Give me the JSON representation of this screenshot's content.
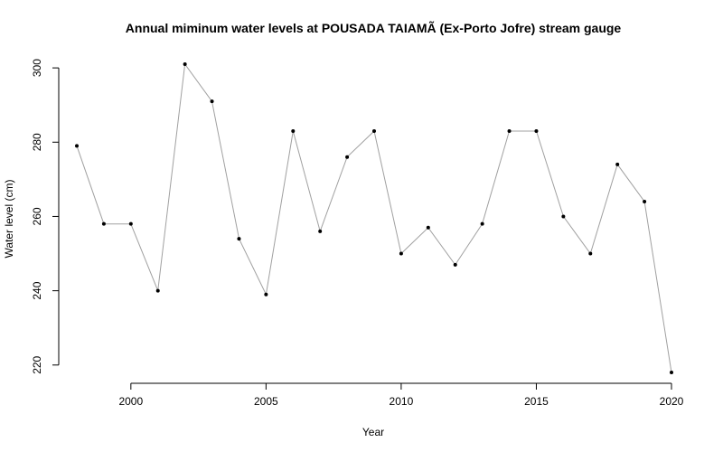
{
  "chart_data": {
    "type": "line",
    "title": "Annual miminum water levels at POUSADA TAIAMÃ  (Ex-Porto Jofre) stream gauge",
    "xlabel": "Year",
    "ylabel": "Water level (cm)",
    "x": [
      1998,
      1999,
      2000,
      2001,
      2002,
      2003,
      2004,
      2005,
      2006,
      2007,
      2008,
      2009,
      2010,
      2011,
      2012,
      2013,
      2014,
      2015,
      2016,
      2017,
      2018,
      2019,
      2020
    ],
    "series": [
      {
        "values": [
          279,
          258,
          258,
          240,
          301,
          291,
          254,
          239,
          283,
          256,
          276,
          283,
          250,
          257,
          247,
          258,
          283,
          283,
          260,
          250,
          274,
          264,
          218
        ]
      }
    ],
    "xlim": [
      1998,
      2020
    ],
    "ylim": [
      218,
      301
    ],
    "x_ticks": [
      2000,
      2005,
      2010,
      2015,
      2020
    ],
    "y_ticks": [
      220,
      240,
      260,
      280,
      300
    ],
    "grid": false,
    "line_color": "#a0a0a0",
    "point_color": "#000000"
  }
}
